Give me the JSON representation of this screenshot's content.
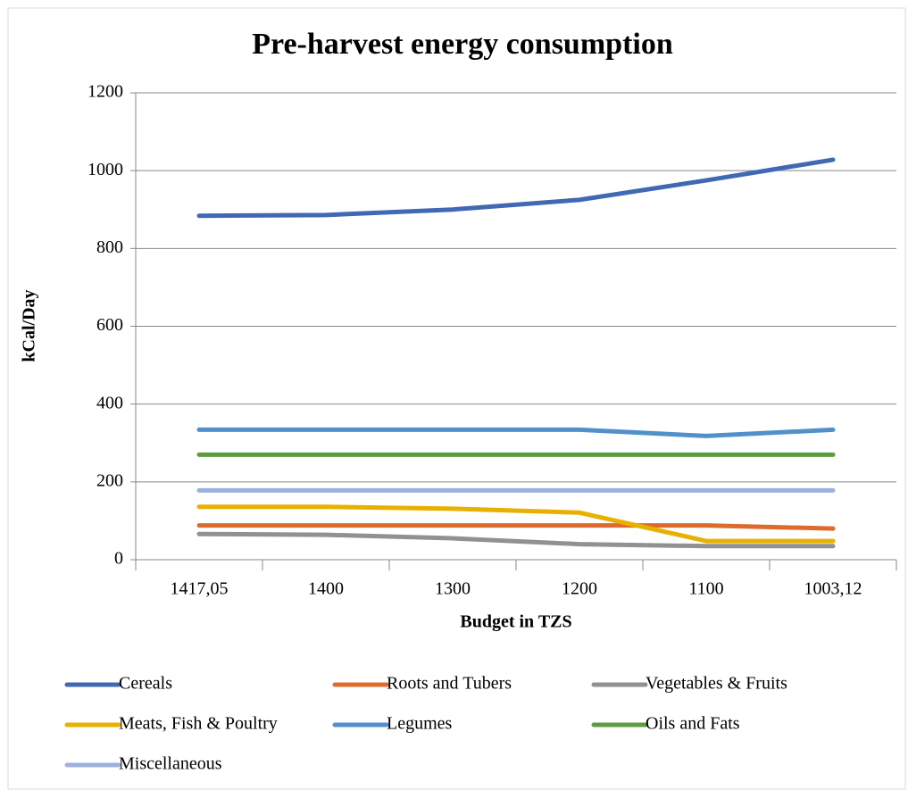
{
  "chart_data": {
    "type": "line",
    "title": "Pre-harvest energy consumption",
    "x_label": "Budget in TZS",
    "y_label": "kCal/Day",
    "categories": [
      "1417,05",
      "1400",
      "1300",
      "1200",
      "1100",
      "1003,12"
    ],
    "series": [
      {
        "name": "Cereals",
        "color": "#4068b4",
        "values": [
          884,
          886,
          900,
          925,
          975,
          1028
        ]
      },
      {
        "name": "Roots and Tubers",
        "color": "#dc6b2c",
        "values": [
          88,
          88,
          88,
          88,
          88,
          80
        ]
      },
      {
        "name": "Vegetables & Fruits",
        "color": "#919191",
        "values": [
          66,
          64,
          55,
          40,
          35,
          35
        ]
      },
      {
        "name": "Meats, Fish & Poultry",
        "color": "#e8b000",
        "values": [
          136,
          136,
          131,
          121,
          48,
          48
        ]
      },
      {
        "name": "Legumes",
        "color": "#5290cc",
        "values": [
          334,
          334,
          334,
          334,
          318,
          334
        ]
      },
      {
        "name": "Oils and Fats",
        "color": "#5f9c3e",
        "values": [
          270,
          270,
          270,
          270,
          270,
          270
        ]
      },
      {
        "name": "Miscellaneous",
        "color": "#9eb0dd",
        "values": [
          178,
          178,
          178,
          178,
          178,
          178
        ]
      }
    ],
    "ylim": [
      0,
      1200
    ],
    "yticks": [
      0,
      200,
      400,
      600,
      800,
      1000,
      1200
    ],
    "grid": true,
    "legend": "bottom"
  }
}
